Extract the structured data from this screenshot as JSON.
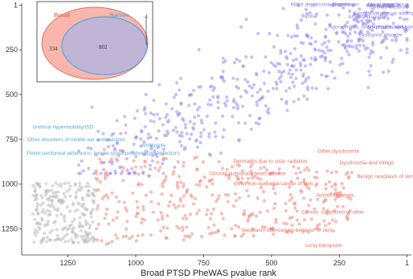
{
  "chart_data": {
    "type": "scatter",
    "xlabel": "Broad PTSD PheWAS pvalue rank",
    "ylabel": "",
    "xlim": [
      1420,
      -15
    ],
    "ylim": [
      1395,
      -10
    ],
    "x_reversed": true,
    "y_reversed": true,
    "x_ticks": [
      1250,
      1000,
      750,
      500,
      250,
      1
    ],
    "y_ticks": [
      1,
      250,
      500,
      750,
      1000,
      1250
    ],
    "colors": {
      "purple": "#9b8cf0",
      "red": "#f08a7e",
      "grey": "#bdbdbd",
      "purple_text": "#8a7fd8",
      "red_text": "#e8705f",
      "blue_text": "#5aa7d6"
    },
    "point_clusters": [
      {
        "color": "purple",
        "x_range": [
          1150,
          1
        ],
        "y_range": [
          1,
          900
        ],
        "approx_count": 560,
        "trend": "diagonal"
      },
      {
        "color": "red",
        "x_range": [
          1150,
          200
        ],
        "y_range": [
          800,
          1340
        ],
        "approx_count": 380,
        "trend": "band"
      },
      {
        "color": "grey",
        "x_range": [
          1380,
          1150
        ],
        "y_range": [
          990,
          1330
        ],
        "approx_count": 240,
        "trend": "blob"
      }
    ],
    "annotations_purple": [
      {
        "label": "Major depressive disorder",
        "x": 430,
        "y": 5
      },
      {
        "label": "Depression",
        "x": 275,
        "y": 5
      },
      {
        "label": "Mood disorders",
        "x": 145,
        "y": 5
      },
      {
        "label": "Suicidal ideation",
        "x": 1,
        "y": 18
      },
      {
        "label": "Suicidal ideation or attempt",
        "x": 200,
        "y": 55
      },
      {
        "label": "Bipolar",
        "x": 390,
        "y": 70
      },
      {
        "label": "Anxiety disorder",
        "x": 80,
        "y": 75
      },
      {
        "label": "Agoraphobia, social phobia, and panic disorder",
        "x": 290,
        "y": 130
      },
      {
        "label": "Anxiety disorders",
        "x": 1,
        "y": 132
      },
      {
        "label": "Dysthymic disorder",
        "x": 180,
        "y": 175
      }
    ],
    "annotations_blue": [
      {
        "label": "Urethral hypermobility/ISD",
        "x": 1380,
        "y": 690
      },
      {
        "label": "Other disorders of middle ear and mastoid",
        "x": 1400,
        "y": 760
      },
      {
        "label": "Amblyopia",
        "x": 980,
        "y": 790
      },
      {
        "label": "Pelvic peritoneal adhesions, female (postoperative) (postinfection)",
        "x": 1400,
        "y": 835
      }
    ],
    "annotations_red": [
      {
        "label": "Other dyschromia",
        "x": 330,
        "y": 825
      },
      {
        "label": "Dermatitis due to solar radiation",
        "x": 640,
        "y": 880
      },
      {
        "label": "Dyschromia and Vitiligo",
        "x": 250,
        "y": 890
      },
      {
        "label": "Chronic pulmonary heart disease",
        "x": 730,
        "y": 950
      },
      {
        "label": "Benign neoplasm of skin",
        "x": 185,
        "y": 965
      },
      {
        "label": "Other non-epithelial cancer of skin",
        "x": 640,
        "y": 1005
      },
      {
        "label": "Actinic keratosis",
        "x": 335,
        "y": 1070
      },
      {
        "label": "Cancer, suspected or other",
        "x": 390,
        "y": 1165
      },
      {
        "label": "Neoplasm of uncertain behavior of skin",
        "x": 610,
        "y": 1265
      },
      {
        "label": "Lung transplant",
        "x": 375,
        "y": 1350
      }
    ],
    "inset": {
      "left_label": "Broad",
      "right_label": "Narrow",
      "broad_only": "334",
      "overlap": "802",
      "narrow_only": "4"
    }
  }
}
